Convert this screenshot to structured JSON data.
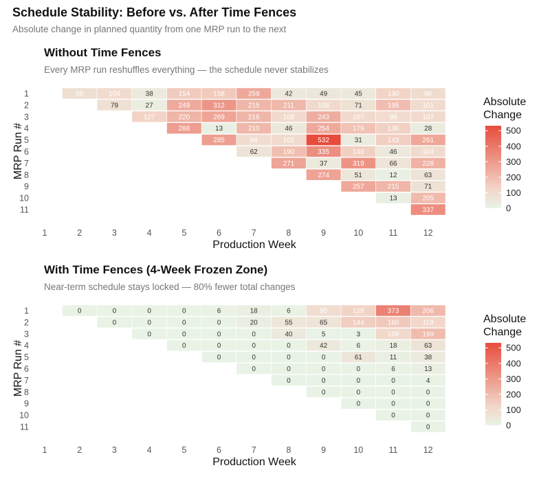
{
  "title": "Schedule Stability: Before vs. After Time Fences",
  "subtitle": "Absolute change in planned quantity from one MRP run to the next",
  "colors": {
    "low": "#e8f3e6",
    "mid": "#f2d8cb",
    "high": "#e74c3c"
  },
  "chart_data": [
    {
      "type": "heatmap",
      "title": "Without Time Fences",
      "subtitle": "Every MRP run reshuffles everything — the schedule never stabilizes",
      "xlabel": "Production Week",
      "ylabel": "MRP Run #",
      "x_ticks": [
        1,
        2,
        3,
        4,
        5,
        6,
        7,
        8,
        9,
        10,
        11,
        12
      ],
      "y_ticks": [
        1,
        2,
        3,
        4,
        5,
        6,
        7,
        8,
        9,
        10,
        11
      ],
      "legend_title": "Absolute Change",
      "legend_ticks": [
        0,
        100,
        200,
        300,
        400,
        500
      ],
      "legend_placement": "right",
      "rows": [
        {
          "run": 1,
          "start_week": 2,
          "values": [
            86,
            104,
            38,
            154,
            158,
            259,
            42,
            49,
            45,
            130,
            96
          ]
        },
        {
          "run": 2,
          "start_week": 3,
          "values": [
            79,
            27,
            249,
            312,
            215,
            211,
            108,
            71,
            195,
            101
          ]
        },
        {
          "run": 3,
          "start_week": 4,
          "values": [
            127,
            220,
            269,
            216,
            108,
            243,
            107,
            98,
            107
          ]
        },
        {
          "run": 4,
          "start_week": 5,
          "values": [
            288,
            13,
            210,
            46,
            254,
            179,
            136,
            28
          ]
        },
        {
          "run": 5,
          "start_week": 6,
          "values": [
            285,
            94,
            102,
            532,
            31,
            143,
            261
          ]
        },
        {
          "run": 6,
          "start_week": 7,
          "values": [
            62,
            190,
            335,
            140,
            46,
            104
          ]
        },
        {
          "run": 7,
          "start_week": 8,
          "values": [
            271,
            37,
            319,
            66,
            228
          ]
        },
        {
          "run": 8,
          "start_week": 9,
          "values": [
            274,
            51,
            12,
            63
          ]
        },
        {
          "run": 9,
          "start_week": 10,
          "values": [
            257,
            215,
            71
          ]
        },
        {
          "run": 10,
          "start_week": 11,
          "values": [
            13,
            205
          ]
        },
        {
          "run": 11,
          "start_week": 12,
          "values": [
            337
          ]
        }
      ]
    },
    {
      "type": "heatmap",
      "title": "With Time Fences (4-Week Frozen Zone)",
      "subtitle": "Near-term schedule stays locked — 80% fewer total changes",
      "xlabel": "Production Week",
      "ylabel": "MRP Run #",
      "x_ticks": [
        1,
        2,
        3,
        4,
        5,
        6,
        7,
        8,
        9,
        10,
        11,
        12
      ],
      "y_ticks": [
        1,
        2,
        3,
        4,
        5,
        6,
        7,
        8,
        9,
        10,
        11
      ],
      "legend_title": "Absolute Change",
      "legend_ticks": [
        0,
        100,
        200,
        300,
        400,
        500
      ],
      "legend_placement": "right",
      "rows": [
        {
          "run": 1,
          "start_week": 2,
          "values": [
            0,
            0,
            0,
            0,
            6,
            18,
            6,
            95,
            128,
            373,
            206
          ]
        },
        {
          "run": 2,
          "start_week": 3,
          "values": [
            0,
            0,
            0,
            0,
            20,
            55,
            65,
            144,
            160,
            119
          ]
        },
        {
          "run": 3,
          "start_week": 4,
          "values": [
            0,
            0,
            0,
            0,
            40,
            5,
            3,
            109,
            199
          ]
        },
        {
          "run": 4,
          "start_week": 5,
          "values": [
            0,
            0,
            0,
            0,
            42,
            6,
            18,
            63
          ]
        },
        {
          "run": 5,
          "start_week": 6,
          "values": [
            0,
            0,
            0,
            0,
            61,
            11,
            38
          ]
        },
        {
          "run": 6,
          "start_week": 7,
          "values": [
            0,
            0,
            0,
            0,
            6,
            13
          ]
        },
        {
          "run": 7,
          "start_week": 8,
          "values": [
            0,
            0,
            0,
            0,
            4
          ]
        },
        {
          "run": 8,
          "start_week": 9,
          "values": [
            0,
            0,
            0,
            0
          ]
        },
        {
          "run": 9,
          "start_week": 10,
          "values": [
            0,
            0,
            0
          ]
        },
        {
          "run": 10,
          "start_week": 11,
          "values": [
            0,
            0
          ]
        },
        {
          "run": 11,
          "start_week": 12,
          "values": [
            0
          ]
        }
      ]
    }
  ]
}
